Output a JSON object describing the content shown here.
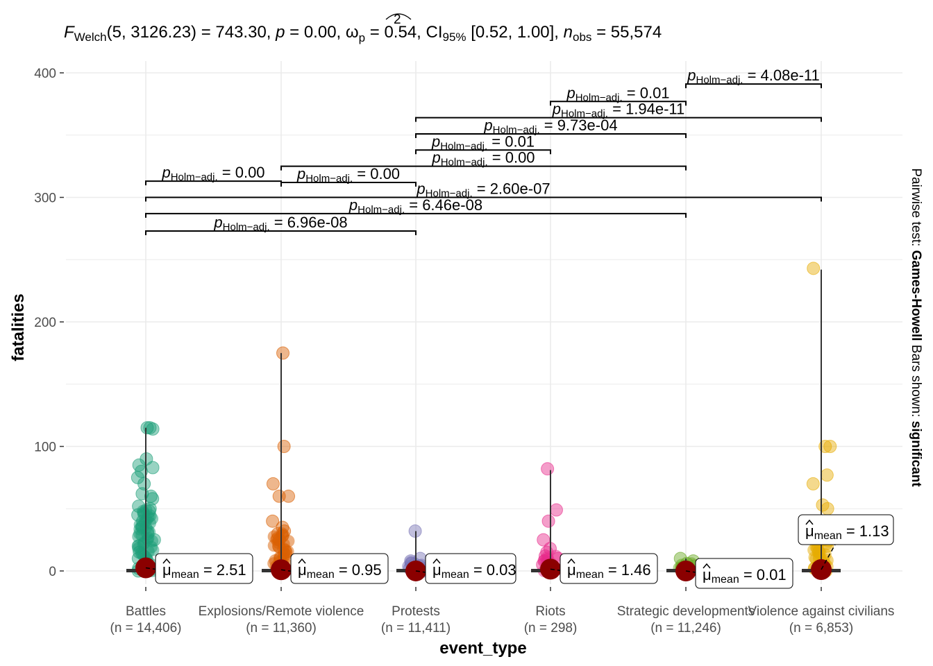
{
  "chart_data": {
    "type": "scatter",
    "subtype": "violin-box-jitter (ggbetweenstats)",
    "title": "",
    "subtitle": {
      "statistic_name": "F",
      "statistic_sub": "Welch",
      "df": "(5, 3126.23)",
      "statistic_value": "743.30",
      "p_label": "p",
      "p_value": "0.00",
      "effsize_label": "ω",
      "effsize_sup": "2",
      "effsize_sub": "p",
      "effsize_value": "0.54",
      "ci_label": "CI",
      "ci_sub": "95%",
      "ci_value": "[0.52, 1.00]",
      "n_label": "n",
      "n_sub": "obs",
      "n_value": "55,574"
    },
    "xlabel": "event_type",
    "ylabel": "fatalities",
    "ylim": [
      -10,
      410
    ],
    "yticks": [
      0,
      100,
      200,
      300,
      400
    ],
    "grid": true,
    "caption": {
      "prefix": "Pairwise test: ",
      "test": "Games-Howell",
      "middle": " Bars shown: ",
      "shown": "significant"
    },
    "categories": [
      "Battles",
      "Explosions/Remote violence",
      "Protests",
      "Riots",
      "Strategic developments",
      "Violence against civilians"
    ],
    "n_labels": [
      "(n = 14,406)",
      "(n = 11,360)",
      "(n = 11,411)",
      "(n = 298)",
      "(n = 11,246)",
      "(n = 6,853)"
    ],
    "colors": [
      "#1B9E77",
      "#D95F02",
      "#7570B3",
      "#E7298A",
      "#66A61E",
      "#E6AB02"
    ],
    "mean_color": "#8B0000",
    "means": [
      2.51,
      0.95,
      0.03,
      1.46,
      0.01,
      1.13
    ],
    "mean_label_prefix": "μ",
    "mean_label_sub": "mean",
    "whisker_max": [
      115,
      175,
      32,
      81,
      10,
      242
    ],
    "points": [
      [
        115,
        115,
        114,
        90,
        85,
        83,
        80,
        75,
        70,
        62,
        60,
        58,
        52,
        50,
        48,
        45,
        40,
        35,
        30,
        25,
        20,
        15,
        10,
        5,
        2,
        0
      ],
      [
        175,
        100,
        70,
        60,
        60,
        40,
        35,
        32,
        30,
        28,
        25,
        20,
        15,
        10,
        5,
        2,
        0
      ],
      [
        32,
        10,
        8,
        6,
        4,
        2,
        0
      ],
      [
        82,
        49,
        40,
        25,
        18,
        15,
        12,
        10,
        8,
        5,
        2,
        0
      ],
      [
        10,
        8,
        6,
        4,
        2,
        0
      ],
      [
        243,
        100,
        100,
        77,
        70,
        53,
        50,
        32,
        30,
        25,
        20,
        15,
        10,
        5,
        2,
        0
      ]
    ],
    "pairwise": [
      {
        "group1": 0,
        "group2": 1,
        "y": 313,
        "p": "0.00"
      },
      {
        "group1": 0,
        "group2": 2,
        "y": 273,
        "p": "6.96e-08"
      },
      {
        "group1": 0,
        "group2": 4,
        "y": 287,
        "p": "6.46e-08"
      },
      {
        "group1": 0,
        "group2": 5,
        "y": 300,
        "p": "2.60e-07"
      },
      {
        "group1": 1,
        "group2": 2,
        "y": 312,
        "p": "0.00"
      },
      {
        "group1": 1,
        "group2": 4,
        "y": 325,
        "p": "0.00"
      },
      {
        "group1": 2,
        "group2": 3,
        "y": 338,
        "p": "0.01"
      },
      {
        "group1": 2,
        "group2": 4,
        "y": 351,
        "p": "9.73e-04"
      },
      {
        "group1": 2,
        "group2": 5,
        "y": 364,
        "p": "1.94e-11"
      },
      {
        "group1": 3,
        "group2": 4,
        "y": 377,
        "p": "0.01"
      },
      {
        "group1": 4,
        "group2": 5,
        "y": 391,
        "p": "4.08e-11"
      }
    ],
    "p_label": "p",
    "p_sub": "Holm−adj."
  }
}
